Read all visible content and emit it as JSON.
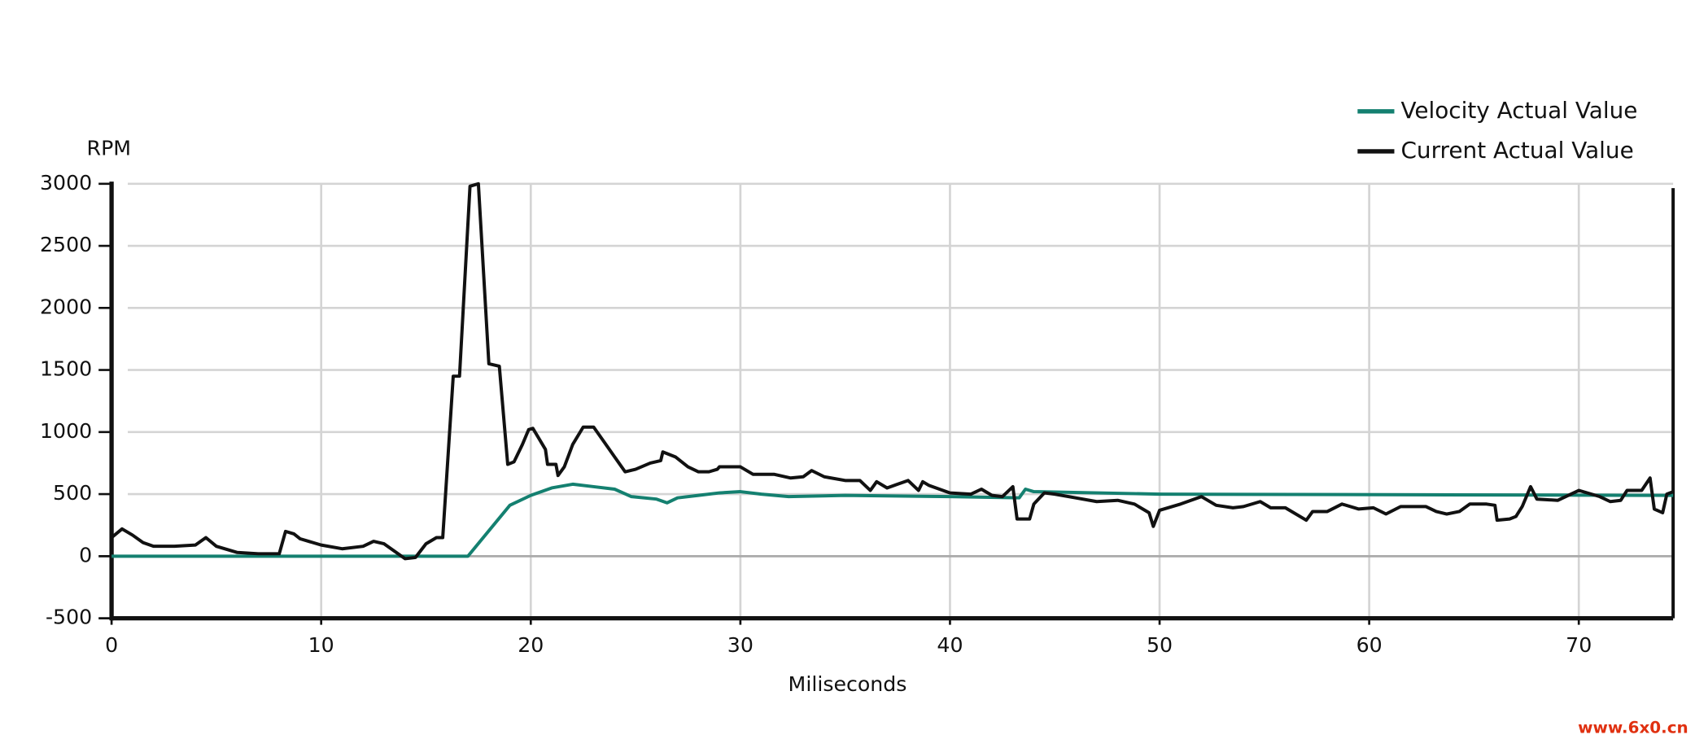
{
  "chart_data": {
    "type": "line",
    "x_label": "Miliseconds",
    "y_label": "RPM",
    "xlim": [
      0,
      74.5
    ],
    "xticks": [
      0,
      10,
      20,
      30,
      40,
      50,
      60,
      70
    ],
    "ylim": [
      -500,
      3000
    ],
    "yticks": [
      -500,
      0,
      500,
      1000,
      1500,
      2000,
      2500,
      3000
    ],
    "grid": true,
    "legend": "top-right",
    "series": [
      {
        "name": "Velocity Actual Value",
        "color": "#148070",
        "x": [
          0,
          17,
          19,
          20,
          21,
          22,
          23,
          24,
          24.8,
          26,
          26.5,
          27,
          28,
          29,
          30,
          31,
          32.3,
          35,
          40,
          43.3,
          43.6,
          44,
          50,
          74.5
        ],
        "values": [
          0,
          0,
          410,
          490,
          550,
          580,
          560,
          540,
          480,
          460,
          430,
          470,
          490,
          510,
          520,
          500,
          480,
          490,
          480,
          470,
          540,
          520,
          500,
          490
        ]
      },
      {
        "name": "Current Actual Value",
        "color": "#111111",
        "x": [
          0,
          0.5,
          1,
          1.5,
          2,
          3,
          4,
          4.5,
          5,
          6,
          7,
          8,
          8.3,
          8.7,
          9,
          10,
          11,
          12,
          12.5,
          13,
          13.5,
          14,
          14.5,
          15,
          15.5,
          15.8,
          16.3,
          16.6,
          17.1,
          17.5,
          18,
          18.5,
          18.9,
          19.2,
          19.6,
          19.9,
          20.1,
          20.7,
          20.8,
          21.2,
          21.3,
          21.6,
          22,
          22.5,
          23,
          23.5,
          24,
          24.5,
          25,
          25.7,
          26.2,
          26.3,
          26.9,
          27.5,
          28,
          28.5,
          28.9,
          29,
          30,
          30.6,
          31.6,
          32.4,
          33,
          33.4,
          34,
          35,
          35.7,
          36.2,
          36.5,
          37,
          37.5,
          38,
          38.5,
          38.7,
          39,
          40,
          41,
          41.5,
          42,
          42.5,
          43,
          43.2,
          43.8,
          44,
          44.5,
          45,
          46,
          47,
          48,
          48.8,
          49.5,
          49.7,
          50,
          51,
          52,
          52.7,
          53.5,
          54,
          54.8,
          55.3,
          56,
          57,
          57.3,
          58,
          58.7,
          59.5,
          60.2,
          60.8,
          61.5,
          62.7,
          63.2,
          63.7,
          64.3,
          64.8,
          65.6,
          66,
          66.1,
          66.7,
          67,
          67.3,
          67.7,
          68,
          69,
          70,
          71,
          71.5,
          72,
          72.3,
          73,
          73.4,
          73.6,
          74,
          74.2,
          74.5
        ],
        "values": [
          150,
          220,
          170,
          110,
          80,
          80,
          90,
          150,
          80,
          30,
          20,
          20,
          200,
          180,
          140,
          90,
          60,
          80,
          120,
          100,
          40,
          -20,
          -10,
          100,
          150,
          150,
          1450,
          1450,
          2980,
          3000,
          1550,
          1530,
          740,
          760,
          900,
          1020,
          1030,
          860,
          740,
          740,
          650,
          720,
          900,
          1040,
          1040,
          920,
          800,
          680,
          700,
          750,
          770,
          840,
          800,
          720,
          680,
          680,
          700,
          720,
          720,
          660,
          660,
          630,
          640,
          690,
          640,
          610,
          610,
          530,
          600,
          550,
          580,
          610,
          530,
          600,
          570,
          510,
          500,
          540,
          490,
          480,
          560,
          300,
          300,
          420,
          510,
          500,
          470,
          440,
          450,
          420,
          350,
          240,
          370,
          420,
          480,
          410,
          390,
          400,
          440,
          390,
          390,
          290,
          360,
          360,
          420,
          380,
          390,
          340,
          400,
          400,
          360,
          340,
          360,
          420,
          420,
          410,
          290,
          300,
          320,
          400,
          560,
          460,
          450,
          530,
          480,
          440,
          450,
          530,
          530,
          630,
          380,
          350,
          500,
          520
        ]
      }
    ]
  },
  "watermark": "www.6x0.cn"
}
